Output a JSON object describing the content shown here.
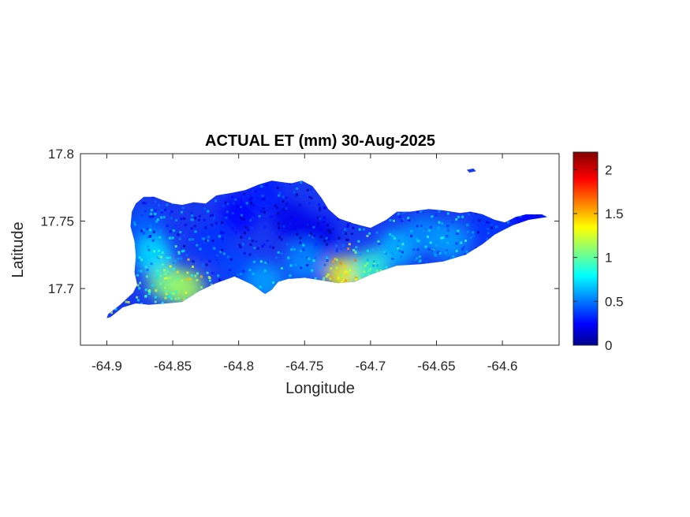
{
  "chart_data": {
    "type": "heatmap",
    "title": "ACTUAL ET (mm) 30-Aug-2025",
    "xlabel": "Longitude",
    "ylabel": "Latitude",
    "xlim": [
      -64.92,
      -64.557
    ],
    "ylim": [
      17.658,
      17.8
    ],
    "x_ticks": [
      -64.9,
      -64.85,
      -64.8,
      -64.75,
      -64.7,
      -64.65,
      -64.6
    ],
    "x_tick_labels": [
      "-64.9",
      "-64.85",
      "-64.8",
      "-64.75",
      "-64.7",
      "-64.65",
      "-64.6"
    ],
    "y_ticks": [
      17.7,
      17.75,
      17.8
    ],
    "y_tick_labels": [
      "17.7",
      "17.75",
      "17.8"
    ],
    "colorbar": {
      "colormap": "jet",
      "range": [
        0,
        2.2
      ],
      "ticks": [
        0,
        0.5,
        1,
        1.5,
        2
      ],
      "tick_labels": [
        "0",
        "0.5",
        "1",
        "1.5",
        "2"
      ]
    },
    "regions": [
      {
        "lon": -64.87,
        "lat": 17.745,
        "et": 0.45
      },
      {
        "lon": -64.855,
        "lat": 17.705,
        "et": 1.05
      },
      {
        "lon": -64.84,
        "lat": 17.7,
        "et": 1.15
      },
      {
        "lon": -64.865,
        "lat": 17.725,
        "et": 0.75
      },
      {
        "lon": -64.82,
        "lat": 17.735,
        "et": 0.35
      },
      {
        "lon": -64.8,
        "lat": 17.755,
        "et": 0.25
      },
      {
        "lon": -64.78,
        "lat": 17.77,
        "et": 0.3
      },
      {
        "lon": -64.76,
        "lat": 17.75,
        "et": 0.2
      },
      {
        "lon": -64.74,
        "lat": 17.74,
        "et": 0.2
      },
      {
        "lon": -64.75,
        "lat": 17.72,
        "et": 0.55
      },
      {
        "lon": -64.72,
        "lat": 17.71,
        "et": 1.35
      },
      {
        "lon": -64.7,
        "lat": 17.715,
        "et": 0.9
      },
      {
        "lon": -64.68,
        "lat": 17.73,
        "et": 0.65
      },
      {
        "lon": -64.66,
        "lat": 17.74,
        "et": 0.55
      },
      {
        "lon": -64.64,
        "lat": 17.735,
        "et": 0.6
      },
      {
        "lon": -64.61,
        "lat": 17.745,
        "et": 0.35
      },
      {
        "lon": -64.58,
        "lat": 17.752,
        "et": 0.25
      },
      {
        "lon": -64.8,
        "lat": 17.715,
        "et": 0.4
      },
      {
        "lon": -64.78,
        "lat": 17.705,
        "et": 0.6
      }
    ]
  }
}
